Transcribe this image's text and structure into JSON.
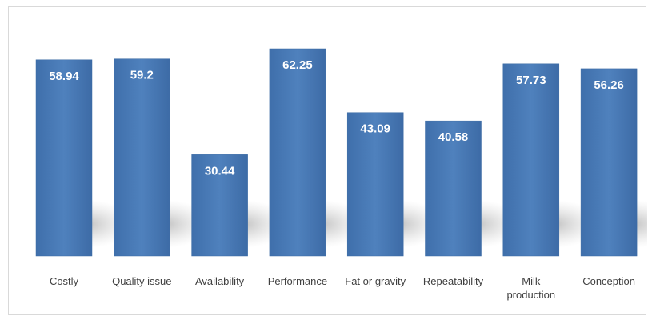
{
  "chart_data": {
    "type": "bar",
    "categories": [
      "Costly",
      "Quality issue",
      "Availability",
      "Performance",
      "Fat or gravity",
      "Repeatability",
      "Milk production",
      "Conception"
    ],
    "category_lines": [
      [
        "Costly"
      ],
      [
        "Quality issue"
      ],
      [
        "Availability"
      ],
      [
        "Performance"
      ],
      [
        "Fat or gravity"
      ],
      [
        "Repeatability"
      ],
      [
        "Milk",
        "production"
      ],
      [
        "Conception"
      ]
    ],
    "values": [
      58.94,
      59.2,
      30.44,
      62.25,
      43.09,
      40.58,
      57.73,
      56.26
    ],
    "data_labels": [
      "58.94",
      "59.2",
      "30.44",
      "62.25",
      "43.09",
      "40.58",
      "57.73",
      "56.26"
    ],
    "ylim": [
      0,
      62.25
    ],
    "grid": false,
    "legend": "none",
    "colors": {
      "bar": "#4f81bd",
      "bar_dark": "#3a6aa4",
      "label": "#ffffff",
      "axis_text": "#404040"
    }
  }
}
